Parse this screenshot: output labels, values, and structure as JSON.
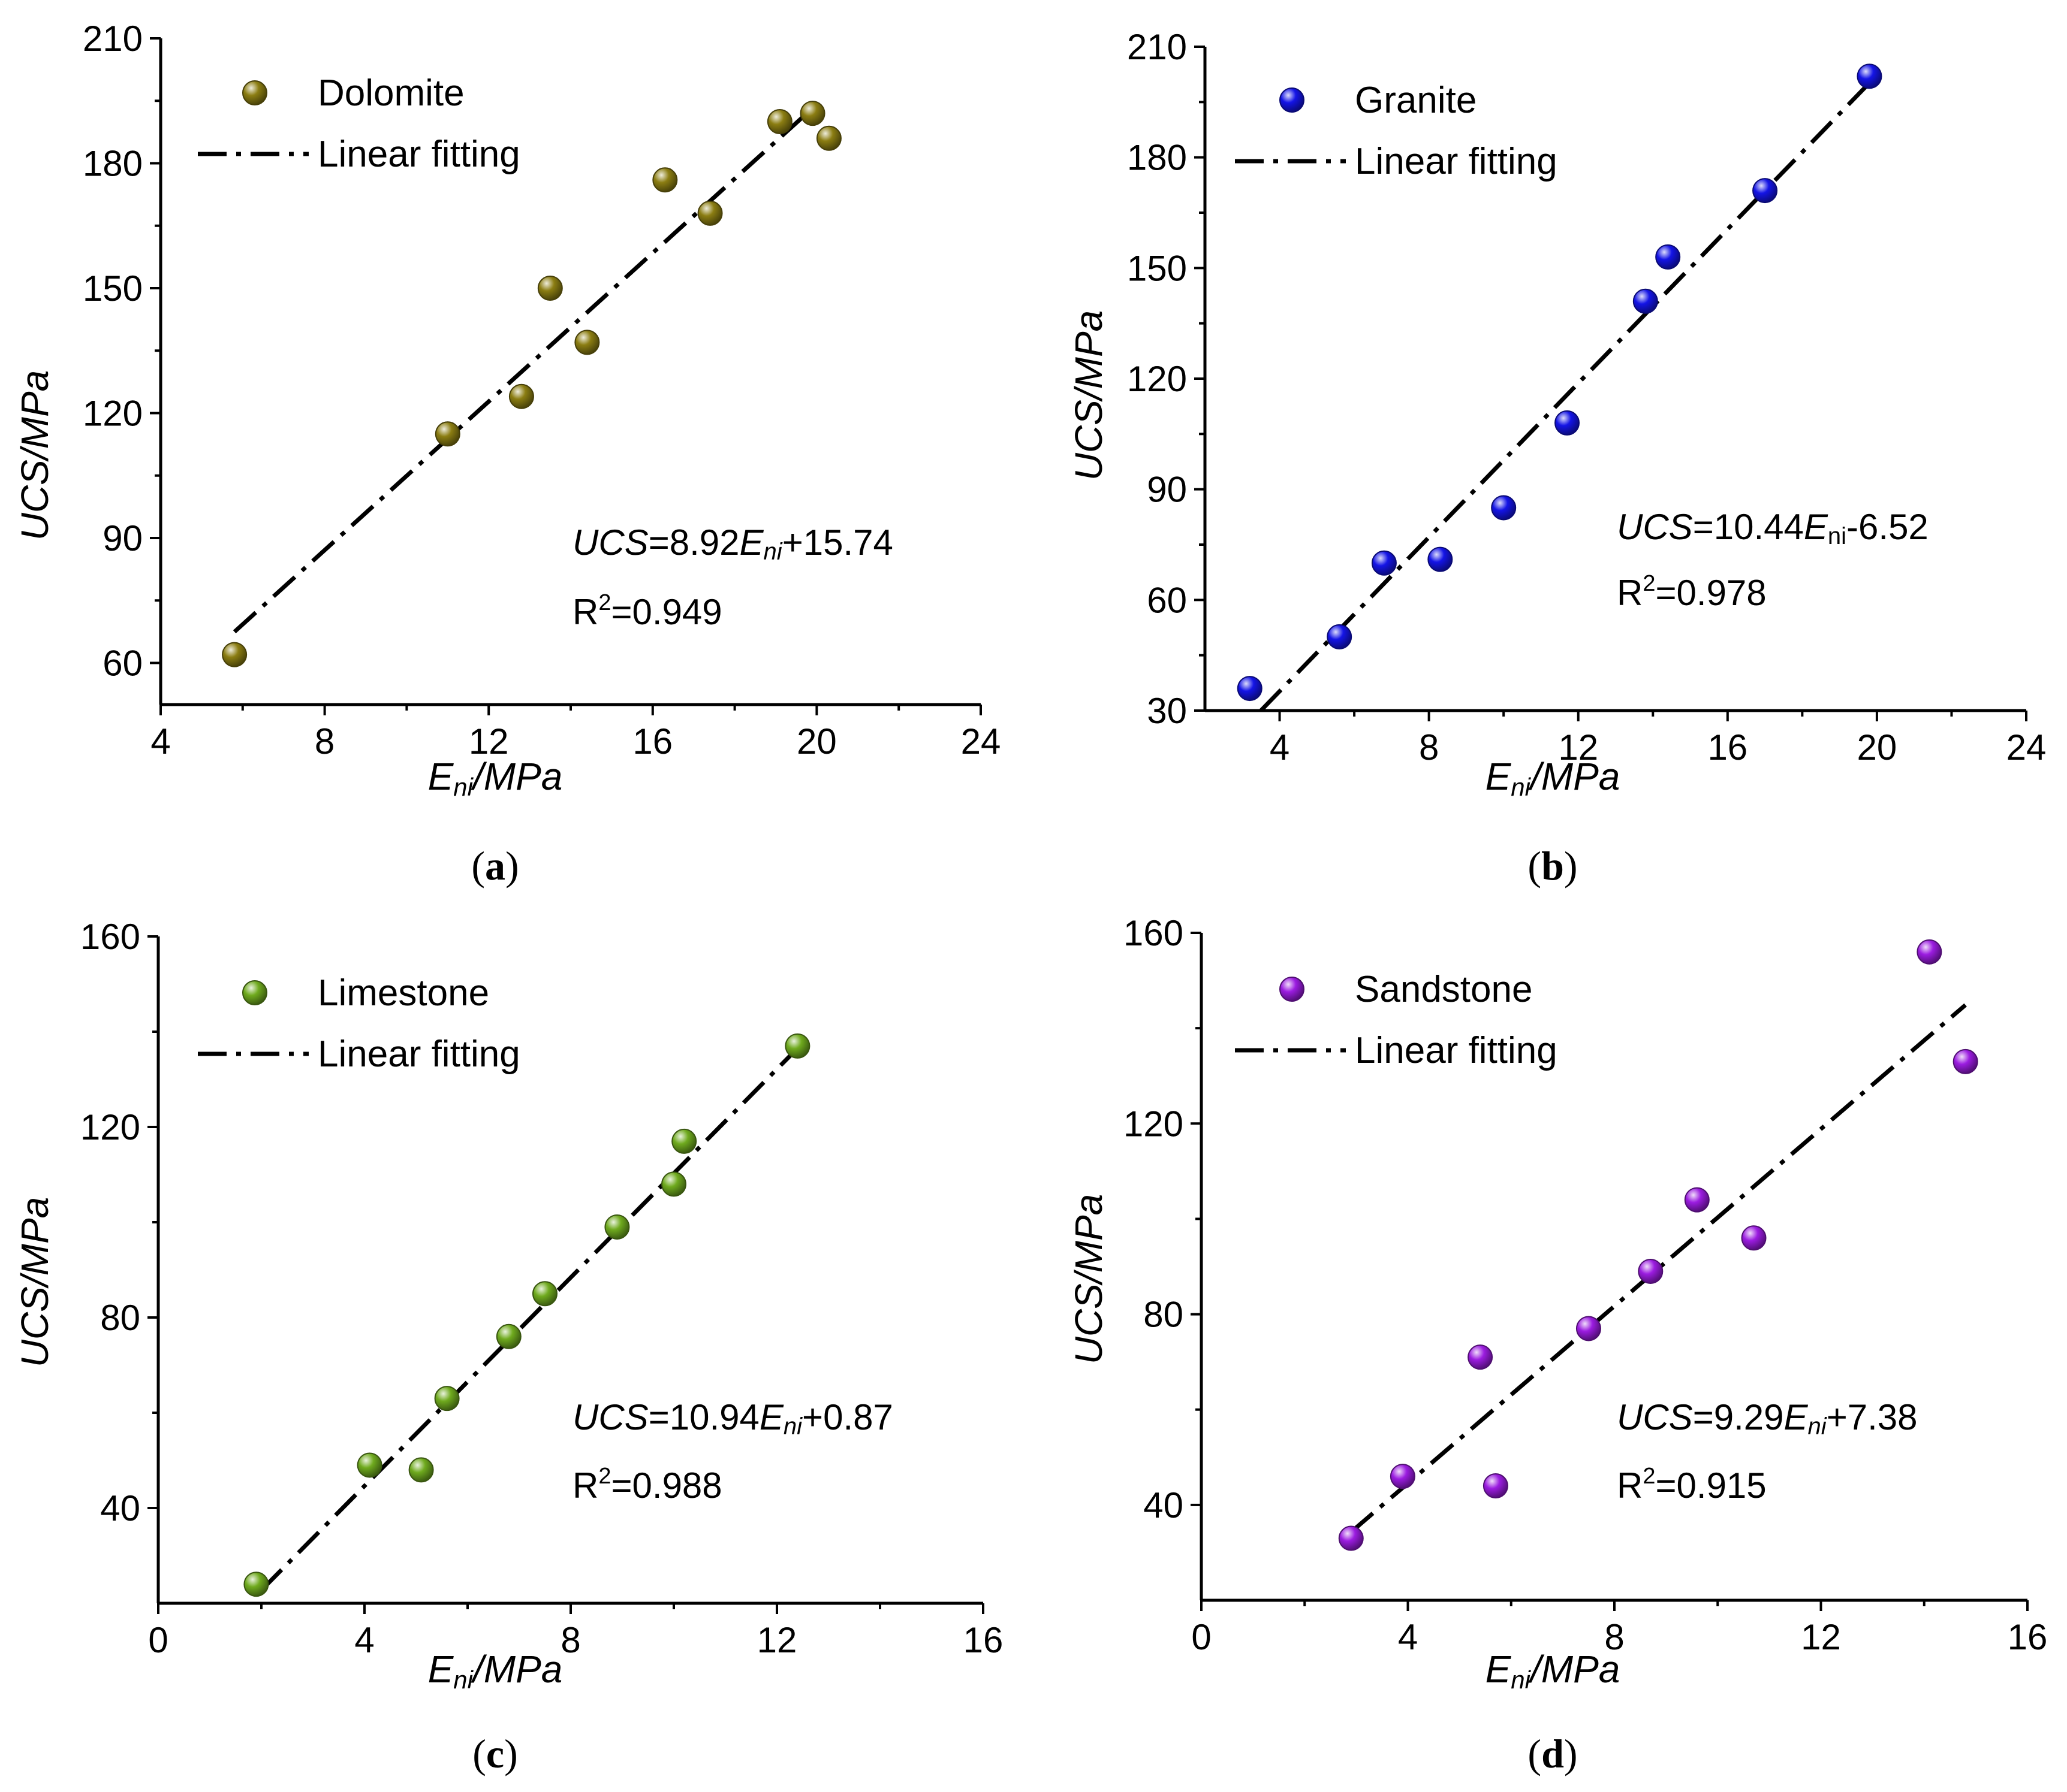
{
  "chart_data": [
    {
      "type": "scatter",
      "panel_label": "a",
      "xlabel_main": "E",
      "xlabel_sub": "ni",
      "xlabel_rest": "/MPa",
      "ylabel": "UCS/MPa",
      "xlim": [
        4,
        24
      ],
      "ylim": [
        50,
        210
      ],
      "xticks": [
        4,
        8,
        12,
        16,
        20,
        24
      ],
      "yticks": [
        60,
        90,
        120,
        150,
        180,
        210
      ],
      "series": [
        {
          "name": "Dolomite",
          "color": "#8B7D12",
          "x": [
            5.8,
            11.0,
            12.8,
            13.5,
            14.4,
            16.3,
            17.4,
            19.1,
            19.9,
            20.3
          ],
          "y": [
            62,
            115,
            124,
            150,
            137,
            176,
            168,
            190,
            192,
            186
          ]
        }
      ],
      "fit_label": "Linear fitting",
      "fit": {
        "slope": 8.92,
        "intercept": 15.74,
        "x_range": [
          5.8,
          20.0
        ]
      },
      "eq_prefix": "UCS",
      "eq_mid": "=8.92",
      "eq_var": "E",
      "eq_sub": "ni",
      "eq_suffix": "+15.74",
      "r2_prefix": "R",
      "r2_sup": "2",
      "r2_value": "=0.949"
    },
    {
      "type": "scatter",
      "panel_label": "b",
      "xlabel_main": "E",
      "xlabel_sub": "ni",
      "xlabel_rest": "/MPa",
      "ylabel": "UCS/MPa",
      "xlim": [
        2,
        24
      ],
      "ylim": [
        30,
        210
      ],
      "xticks": [
        4,
        8,
        12,
        16,
        20,
        24
      ],
      "yticks": [
        30,
        60,
        90,
        120,
        150,
        180,
        210
      ],
      "series": [
        {
          "name": "Granite",
          "color": "#1414E6",
          "x": [
            3.2,
            5.6,
            6.8,
            8.3,
            10.0,
            11.7,
            13.8,
            14.4,
            17.0,
            19.8
          ],
          "y": [
            36,
            50,
            70,
            71,
            85,
            108,
            141,
            153,
            171,
            202
          ]
        }
      ],
      "fit_label": "Linear fitting",
      "fit": {
        "slope": 10.44,
        "intercept": -6.52,
        "x_range": [
          3.5,
          19.8
        ]
      },
      "eq_prefix": "UCS",
      "eq_mid": "=10.44",
      "eq_var": "E",
      "eq_sub": "ni",
      "eq_suffix": "-6.52",
      "r2_prefix": "R",
      "r2_sup": "2",
      "r2_value": "=0.978"
    },
    {
      "type": "scatter",
      "panel_label": "c",
      "xlabel_main": "E",
      "xlabel_sub": "ni",
      "xlabel_rest": "/MPa",
      "ylabel": "UCS/MPa",
      "xlim": [
        0,
        16
      ],
      "ylim": [
        20,
        160
      ],
      "xticks": [
        0,
        4,
        8,
        12,
        16
      ],
      "yticks": [
        40,
        80,
        120,
        160
      ],
      "series": [
        {
          "name": "Limestone",
          "color": "#6FAA1E",
          "x": [
            1.9,
            4.1,
            5.1,
            5.6,
            6.8,
            7.5,
            8.9,
            10.0,
            10.2,
            12.4
          ],
          "y": [
            24,
            49,
            48,
            63,
            76,
            85,
            99,
            108,
            117,
            137
          ]
        }
      ],
      "fit_label": "Linear fitting",
      "fit": {
        "slope": 10.94,
        "intercept": 0.87,
        "x_range": [
          2.0,
          12.4
        ]
      },
      "eq_prefix": "UCS",
      "eq_mid": "=10.94",
      "eq_var": "E",
      "eq_sub": "ni",
      "eq_suffix": "+0.87",
      "r2_prefix": "R",
      "r2_sup": "2",
      "r2_value": "=0.988"
    },
    {
      "type": "scatter",
      "panel_label": "d",
      "xlabel_main": "E",
      "xlabel_sub": "ni",
      "xlabel_rest": "/MPa",
      "ylabel": "UCS/MPa",
      "xlim": [
        0,
        16
      ],
      "ylim": [
        20,
        160
      ],
      "xticks": [
        0,
        4,
        8,
        12,
        16
      ],
      "yticks": [
        40,
        80,
        120,
        160
      ],
      "series": [
        {
          "name": "Sandstone",
          "color": "#9B1CE0",
          "x": [
            2.9,
            3.9,
            5.4,
            5.7,
            7.5,
            8.7,
            9.6,
            10.7,
            14.1,
            14.8
          ],
          "y": [
            33,
            46,
            71,
            44,
            77,
            89,
            104,
            96,
            156,
            133
          ]
        }
      ],
      "fit_label": "Linear fitting",
      "fit": {
        "slope": 9.29,
        "intercept": 7.38,
        "x_range": [
          2.9,
          14.8
        ]
      },
      "eq_prefix": "UCS",
      "eq_mid": "=9.29",
      "eq_var": "E",
      "eq_sub": "ni",
      "eq_suffix": "+7.38",
      "r2_prefix": "R",
      "r2_sup": "2",
      "r2_value": "=0.915"
    }
  ]
}
